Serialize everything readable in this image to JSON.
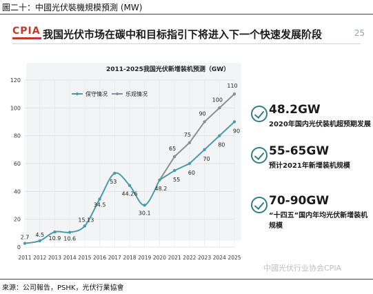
{
  "caption": "圖二十：中國光伏裝機規模預測 (MW)",
  "source": "來源：公司報告，PSHK，光伏行業協會",
  "slide": {
    "logo": "CPIA",
    "title": "我国光伏市场在碳中和目标指引下将进入下一个快速发展阶段",
    "page_number": "25",
    "watermark": "中國光伏行业协会CPIA"
  },
  "chart_data": {
    "type": "line",
    "title": "2011-2025我国光伏新增装机预测（GW）",
    "x": [
      "2011",
      "2012",
      "2013",
      "2014",
      "2015",
      "2016",
      "2017",
      "2018",
      "2019",
      "2020",
      "2021",
      "2022",
      "2023",
      "2024",
      "2025"
    ],
    "ylim": [
      0,
      120
    ],
    "yticks": [
      0,
      20,
      40,
      60,
      80,
      100,
      120
    ],
    "grid": true,
    "legend": "top",
    "historical": {
      "x": [
        "2011",
        "2012",
        "2013",
        "2014",
        "2015",
        "2016",
        "2017",
        "2018",
        "2019",
        "2020"
      ],
      "values": [
        2.7,
        4.5,
        10.9,
        10.6,
        15.13,
        34.5,
        53,
        44.26,
        30.1,
        48.2
      ],
      "labels": [
        "2.7",
        "4.5",
        "10.9",
        "10.6",
        "15.13",
        "34.5",
        "53",
        "44.26",
        "30.1",
        "48.2"
      ]
    },
    "series": [
      {
        "name": "保守情况",
        "x": [
          "2020",
          "2021",
          "2022",
          "2023",
          "2024",
          "2025"
        ],
        "values": [
          48.2,
          55,
          60,
          70,
          80,
          90
        ],
        "labels": [
          "",
          "55",
          "60",
          "70",
          "80",
          "90"
        ],
        "color": "#4a9ba5"
      },
      {
        "name": "乐观情况",
        "x": [
          "2020",
          "2021",
          "2022",
          "2023",
          "2024",
          "2025"
        ],
        "values": [
          48.2,
          65,
          75,
          90,
          100,
          110
        ],
        "labels": [
          "",
          "65",
          "75",
          "90",
          "100",
          "110"
        ],
        "color": "#8a8f96"
      }
    ]
  },
  "cards": [
    {
      "value": "48.2GW",
      "desc": "2020年国内光伏装机超预期发展"
    },
    {
      "value": "55-65GW",
      "desc": "预计2021年新增装机规模"
    },
    {
      "value": "70-90GW",
      "desc": "“十四五”国内年均光伏新增装机规模"
    }
  ],
  "colors": {
    "accent": "#2f7d86",
    "historical": "#4a9ba5",
    "optimistic": "#8a8f96",
    "panel": "#f2f4f5"
  }
}
